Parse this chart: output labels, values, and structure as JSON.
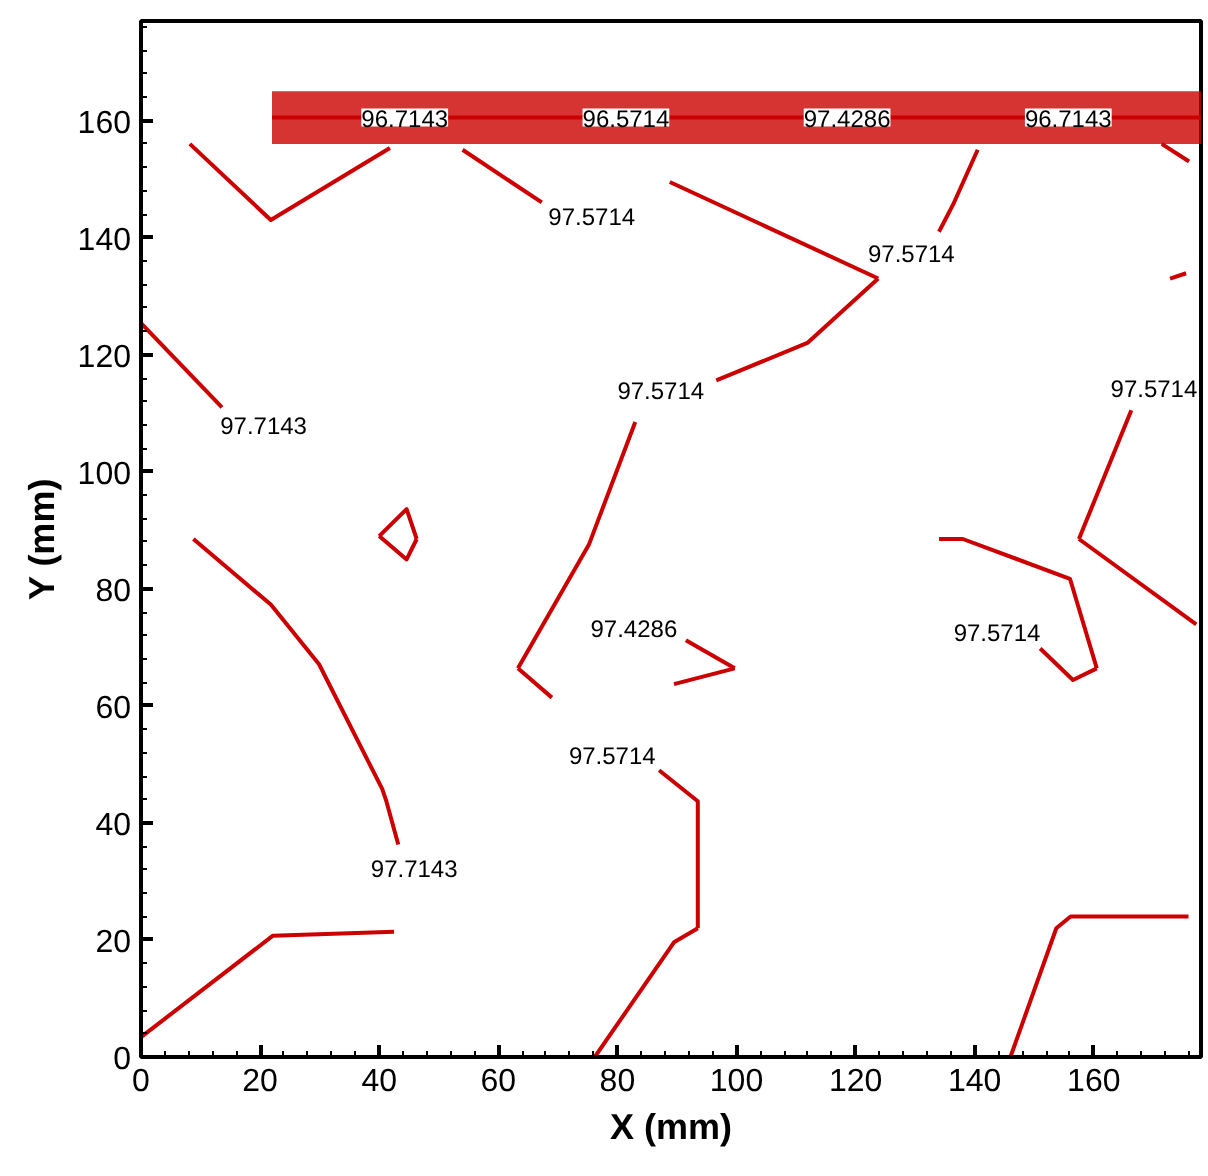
{
  "chart_data": {
    "type": "line",
    "xlabel": "X (mm)",
    "ylabel": "Y (mm)",
    "xlim": [
      0,
      178
    ],
    "ylim": [
      0,
      177
    ],
    "xticks": [
      0,
      20,
      40,
      60,
      80,
      100,
      120,
      140,
      160
    ],
    "yticks": [
      0,
      20,
      40,
      60,
      80,
      100,
      120,
      140,
      160
    ],
    "series": [
      {
        "color": "#cc0000",
        "x": [
          22,
          178
        ],
        "values": [
          160.5,
          160.5
        ],
        "lower": [
          156,
          156
        ],
        "upper": [
          165,
          165
        ]
      },
      {
        "color": "#cc0000",
        "x": [
          8.2,
          21.8,
          41.8
        ],
        "values": [
          156,
          143,
          155.3
        ]
      },
      {
        "name": "97.5714",
        "color": "#cc0000",
        "x": [
          67.3,
          54
        ],
        "values": [
          146,
          155
        ]
      },
      {
        "color": "#cc0000",
        "x": [
          88.8,
          123.8
        ],
        "values": [
          149.5,
          133
        ]
      },
      {
        "name": "97.5714",
        "color": "#cc0000",
        "x": [
          96.6,
          111.9,
          123.8
        ],
        "values": [
          115.6,
          122,
          133
        ]
      },
      {
        "color": "#cc0000",
        "x": [
          83,
          75.2,
          63.3
        ],
        "values": [
          108.5,
          87.5,
          66.4
        ]
      },
      {
        "color": "#cc0000",
        "x": [
          63.3,
          69
        ],
        "values": [
          66.4,
          61.4
        ]
      },
      {
        "name": "97.5714",
        "color": "#cc0000",
        "x": [
          87,
          93.5,
          93.5
        ],
        "values": [
          49,
          43.7,
          22
        ]
      },
      {
        "color": "#cc0000",
        "x": [
          76.2,
          89.5,
          93.5
        ],
        "values": [
          0,
          19.6,
          22
        ]
      },
      {
        "name": "97.5714",
        "color": "#cc0000",
        "x": [
          134,
          136.4,
          140.5
        ],
        "values": [
          141,
          145.7,
          155
        ]
      },
      {
        "color": "#cc0000",
        "x": [
          171.4,
          176
        ],
        "values": [
          156,
          153
        ]
      },
      {
        "color": "#cc0000",
        "x": [
          172.8,
          175.5
        ],
        "values": [
          133,
          133.9
        ]
      },
      {
        "name": "97.5714",
        "color": "#cc0000",
        "x": [
          166.3,
          157.5
        ],
        "values": [
          110.5,
          88.5
        ]
      },
      {
        "color": "#cc0000",
        "x": [
          157.5,
          177.2
        ],
        "values": [
          88.5,
          73.9
        ]
      },
      {
        "color": "#cc0000",
        "x": [
          134,
          138,
          156,
          160.5
        ],
        "values": [
          88.5,
          88.5,
          81.7,
          66.4
        ]
      },
      {
        "name": "97.5714",
        "color": "#cc0000",
        "x": [
          151,
          156.5,
          160.5
        ],
        "values": [
          69.8,
          64.4,
          66.4
        ]
      },
      {
        "name": "97.4286",
        "color": "#cc0000",
        "x": [
          91.5,
          99.7
        ],
        "values": [
          71.2,
          66.4
        ]
      },
      {
        "color": "#cc0000",
        "x": [
          89.5,
          99.7
        ],
        "values": [
          63.7,
          66.4
        ]
      },
      {
        "color": "#cc0000",
        "x": [
          40,
          44.6,
          46.3
        ],
        "values": [
          89,
          93.6,
          88.5
        ]
      },
      {
        "color": "#cc0000",
        "x": [
          40,
          44.6,
          46.3
        ],
        "values": [
          89,
          85,
          88.5
        ]
      },
      {
        "name": "97.7143",
        "color": "#cc0000",
        "x": [
          13.6,
          0
        ],
        "values": [
          111,
          125.4
        ]
      },
      {
        "name": "97.7143",
        "color": "#cc0000",
        "x": [
          43.2,
          41.2,
          40.5,
          29.9,
          21.8,
          8.8
        ],
        "values": [
          36.3,
          43.7,
          45.8,
          67.1,
          77.3,
          88.5
        ]
      },
      {
        "color": "#cc0000",
        "x": [
          0,
          22.1,
          42.5
        ],
        "values": [
          3.4,
          20.7,
          21.4
        ]
      },
      {
        "color": "#cc0000",
        "x": [
          146,
          153.7,
          156.1,
          175.9
        ],
        "values": [
          0,
          22,
          24,
          24
        ]
      }
    ],
    "annotations": [
      "96.7143",
      "96.5714",
      "97.4286",
      "96.7143"
    ]
  }
}
